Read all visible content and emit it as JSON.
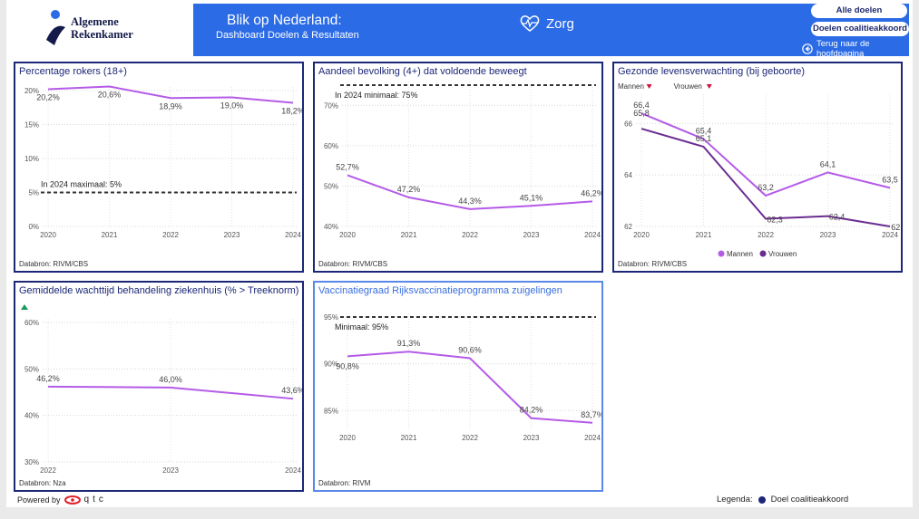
{
  "header": {
    "org_line1": "Algemene",
    "org_line2": "Rekenkamer",
    "title": "Blik op Nederland:",
    "subtitle": "Dashboard Doelen & Resultaten",
    "theme": "Zorg",
    "btn_all": "Alle doelen",
    "btn_coalition": "Doelen coalitieakkoord",
    "back": "Terug naar de hoofdpagina"
  },
  "colors": {
    "accent": "#2b6be6",
    "navy": "#1c2777",
    "line": "#b45be8",
    "line_dark": "#6a2c91"
  },
  "charts": [
    {
      "id": "c1",
      "title": "Percentage rokers (18+)",
      "source": "Databron: RIVM/CBS",
      "type": "line",
      "x": [
        "2020",
        "2021",
        "2022",
        "2023",
        "2024"
      ],
      "yticks": [
        "0%",
        "5%",
        "10%",
        "15%",
        "20%"
      ],
      "ylim": [
        0,
        20
      ],
      "series": [
        {
          "name": "Percentage rokers",
          "values": [
            20.2,
            20.6,
            18.9,
            19.0,
            18.2
          ],
          "labels": [
            "20,2%",
            "20,6%",
            "18,9%",
            "19,0%",
            "18,2%"
          ]
        }
      ],
      "target": {
        "value": 5,
        "label": "In 2024 maximaal: 5%"
      }
    },
    {
      "id": "c2",
      "title": "Aandeel bevolking (4+) dat voldoende beweegt",
      "source": "Databron: RIVM/CBS",
      "type": "line",
      "x": [
        "2020",
        "2021",
        "2022",
        "2023",
        "2024"
      ],
      "yticks": [
        "40%",
        "50%",
        "60%",
        "70%"
      ],
      "ylim": [
        40,
        75
      ],
      "series": [
        {
          "name": "Aandeel bevolking",
          "values": [
            52.7,
            47.2,
            44.3,
            45.1,
            46.2
          ],
          "labels": [
            "52,7%",
            "47,2%",
            "44,3%",
            "45,1%",
            "46,2%"
          ]
        }
      ],
      "target": {
        "value": 75,
        "label": "In 2024 minimaal: 75%"
      }
    },
    {
      "id": "c3",
      "title": "Gezonde levensverwachting (bij geboorte)",
      "source": "Databron: RIVM/CBS",
      "type": "line",
      "x": [
        "2020",
        "2021",
        "2022",
        "2023",
        "2024"
      ],
      "yticks": [
        "62",
        "64",
        "66"
      ],
      "ylim": [
        62,
        67
      ],
      "top_legend": [
        {
          "label": "Mannen"
        },
        {
          "label": "Vrouwen"
        }
      ],
      "series": [
        {
          "name": "Mannen",
          "values": [
            66.4,
            65.4,
            63.2,
            64.1,
            63.5
          ],
          "labels": [
            "66,4",
            "65,4",
            "63,2",
            "64,1",
            "63,5"
          ]
        },
        {
          "name": "Vrouwen",
          "values": [
            65.8,
            65.1,
            62.3,
            62.4,
            62.0
          ],
          "labels": [
            "65,8",
            "65,1",
            "62,3",
            "62,4",
            "62,0"
          ]
        }
      ]
    },
    {
      "id": "c4",
      "title": "Gemiddelde wachttijd behandeling ziekenhuis (% > Treeknorm)",
      "source": "Databron: Nza",
      "type": "line",
      "x": [
        "2022",
        "2023",
        "2024"
      ],
      "yticks": [
        "30%",
        "40%",
        "50%",
        "60%"
      ],
      "ylim": [
        30,
        60
      ],
      "series": [
        {
          "name": "Wachttijd",
          "values": [
            46.2,
            46.0,
            43.6
          ],
          "labels": [
            "46,2%",
            "46,0%",
            "43,6%"
          ]
        }
      ]
    },
    {
      "id": "c5",
      "title": "Vaccinatiegraad Rijksvaccinatieprogramma zuigelingen",
      "source": "Databron: RIVM",
      "type": "line",
      "x": [
        "2020",
        "2021",
        "2022",
        "2023",
        "2024"
      ],
      "yticks": [
        "85%",
        "90%",
        "95%"
      ],
      "ylim": [
        83,
        95
      ],
      "series": [
        {
          "name": "Vaccinatiegraad",
          "values": [
            90.8,
            91.3,
            90.6,
            84.2,
            83.7
          ],
          "labels": [
            "90,8%",
            "91,3%",
            "90,6%",
            "84,2%",
            "83,7%"
          ]
        }
      ],
      "target": {
        "value": 95,
        "label": "Minimaal: 95%"
      }
    }
  ],
  "footer": {
    "powered": "Powered by",
    "brand": "qtc",
    "legend_label": "Legenda:",
    "legend_item": "Doel coalitieakkoord"
  }
}
